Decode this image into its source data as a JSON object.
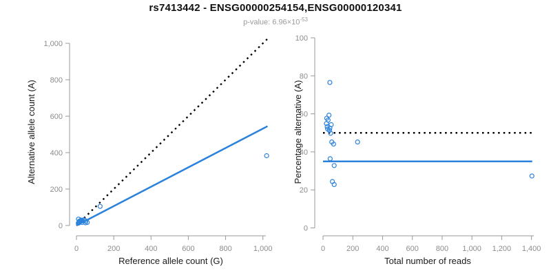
{
  "header": {
    "title": "rs7413442 - ENSG00000254154,ENSG00000120341",
    "subtitle_base": "p-value: 6.96×10",
    "subtitle_exponent": "-53"
  },
  "colors": {
    "accent_blue": "#2b82dc",
    "line_black": "#000000",
    "axis_gray": "#999999",
    "tick_label_gray": "#8c8c8c",
    "subtitle_gray": "#9a9a9a",
    "title_black": "#111111"
  },
  "chart_data": [
    {
      "type": "scatter",
      "name": "allele-counts",
      "xlabel": "Reference allele count (G)",
      "ylabel": "Alternative allele count (A)",
      "xlim": [
        0,
        1030
      ],
      "ylim": [
        0,
        1030
      ],
      "xticks": [
        0,
        200,
        400,
        600,
        800,
        1000
      ],
      "yticks": [
        0,
        200,
        400,
        600,
        800,
        1000
      ],
      "grid": false,
      "legend": null,
      "points": [
        [
          11,
          35
        ],
        [
          16,
          24
        ],
        [
          11,
          14
        ],
        [
          15,
          19
        ],
        [
          10,
          13
        ],
        [
          25,
          30
        ],
        [
          13,
          15
        ],
        [
          22,
          24
        ],
        [
          15,
          16
        ],
        [
          21,
          22
        ],
        [
          26,
          25
        ],
        [
          32,
          27
        ],
        [
          40,
          31
        ],
        [
          127,
          105
        ],
        [
          31,
          17
        ],
        [
          50,
          25
        ],
        [
          48,
          15
        ],
        [
          58,
          17
        ],
        [
          1020,
          383
        ]
      ],
      "lines": [
        {
          "name": "identity-line",
          "x": [
            0,
            1030
          ],
          "y": [
            0,
            1030
          ],
          "style": "dotted",
          "color_key": "black"
        },
        {
          "name": "fit-line",
          "x": [
            0,
            1025
          ],
          "y": [
            0,
            545
          ],
          "style": "solid",
          "color_key": "blue"
        }
      ]
    },
    {
      "type": "scatter",
      "name": "percentage-alternative",
      "xlabel": "Total number of reads",
      "ylabel": "Percentage alternative (A)",
      "xlim": [
        0,
        1410
      ],
      "ylim": [
        0,
        100
      ],
      "xticks": [
        0,
        200,
        400,
        600,
        800,
        1000,
        1200,
        1400
      ],
      "yticks": [
        0,
        20,
        40,
        60,
        80,
        100
      ],
      "grid": false,
      "legend": null,
      "points": [
        [
          46,
          76.5
        ],
        [
          40,
          59.3
        ],
        [
          25,
          57.7
        ],
        [
          34,
          56.7
        ],
        [
          23,
          54.9
        ],
        [
          55,
          54.3
        ],
        [
          28,
          53.2
        ],
        [
          46,
          52.5
        ],
        [
          31,
          52.0
        ],
        [
          43,
          51.3
        ],
        [
          51,
          49.8
        ],
        [
          59,
          45.2
        ],
        [
          71,
          44.1
        ],
        [
          232,
          45.2
        ],
        [
          48,
          36.4
        ],
        [
          75,
          32.8
        ],
        [
          63,
          24.4
        ],
        [
          75,
          22.8
        ],
        [
          1403,
          27.3
        ]
      ],
      "lines": [
        {
          "name": "expected-50pct-line",
          "x": [
            0,
            1405
          ],
          "y": [
            50,
            50
          ],
          "style": "dotted",
          "color_key": "black"
        },
        {
          "name": "observed-mean-line",
          "x": [
            0,
            1405
          ],
          "y": [
            35,
            35
          ],
          "style": "solid",
          "color_key": "blue"
        }
      ]
    }
  ]
}
